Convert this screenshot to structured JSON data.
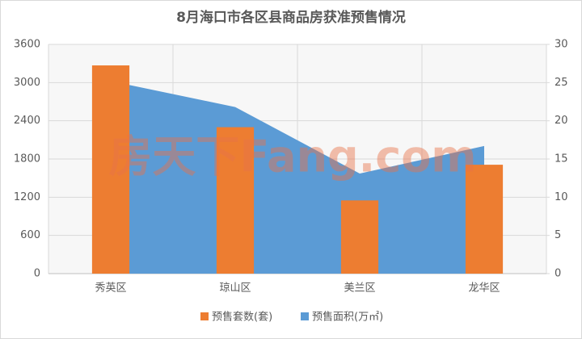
{
  "chart_data": {
    "type": "combo",
    "title": "8月海口市各区县商品房获准预售情况",
    "categories": [
      "秀英区",
      "琼山区",
      "美兰区",
      "龙华区"
    ],
    "series": [
      {
        "name": "预售套数(套)",
        "type": "bar",
        "color": "#ed7d31",
        "values": [
          3270,
          2300,
          1150,
          1710
        ]
      },
      {
        "name": "预售面积(万㎡)",
        "type": "area",
        "color": "#5b9bd5",
        "axis": "y2",
        "values": [
          25.2,
          21.8,
          13.1,
          16.7
        ]
      }
    ],
    "ylim": [
      0,
      3600
    ],
    "yticks": [
      0,
      600,
      1200,
      1800,
      2400,
      3000,
      3600
    ],
    "y2lim": [
      0,
      30
    ],
    "y2ticks": [
      0,
      5,
      10,
      15,
      20,
      25,
      30
    ],
    "grid": true,
    "legend": "bottom",
    "watermark": "房天下Fang.com"
  }
}
